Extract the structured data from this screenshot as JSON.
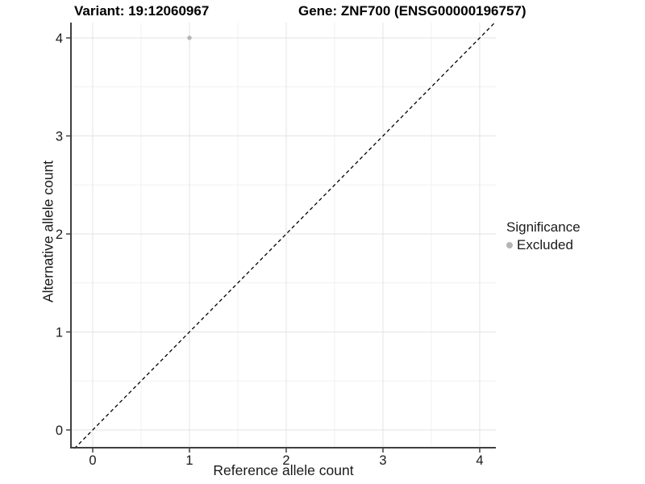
{
  "figure": {
    "title_left": "Variant: 19:12060967",
    "title_right": "Gene: ZNF700 (ENSG00000196757)"
  },
  "chart_data": {
    "type": "scatter",
    "title_left": "Variant: 19:12060967",
    "title_right": "Gene: ZNF700 (ENSG00000196757)",
    "xlabel": "Reference allele count",
    "ylabel": "Alternative allele count",
    "xlim": [
      -0.22,
      4.17
    ],
    "ylim": [
      -0.19,
      4.16
    ],
    "xticks": [
      0,
      1,
      2,
      3,
      4
    ],
    "yticks": [
      0,
      1,
      2,
      3,
      4
    ],
    "minor_ticks": [
      0.5,
      1.5,
      2.5,
      3.5
    ],
    "grid": {
      "major": true,
      "minor": true
    },
    "points": [
      {
        "x": 1,
        "y": 4,
        "series": "Excluded"
      }
    ],
    "reference_line": {
      "type": "identity",
      "slope": 1,
      "intercept": 0,
      "style": "dashed",
      "color": "#000000"
    },
    "legend": {
      "title": "Significance",
      "position": "right",
      "entries": [
        {
          "label": "Excluded",
          "color": "#b5b5b5"
        }
      ]
    },
    "colors": {
      "point": "#b5b5b5",
      "grid_major": "#e3e3e3",
      "grid_minor": "#f1f1f1",
      "axis_line": "#404040",
      "tick_label": "#1a1a1a"
    }
  }
}
